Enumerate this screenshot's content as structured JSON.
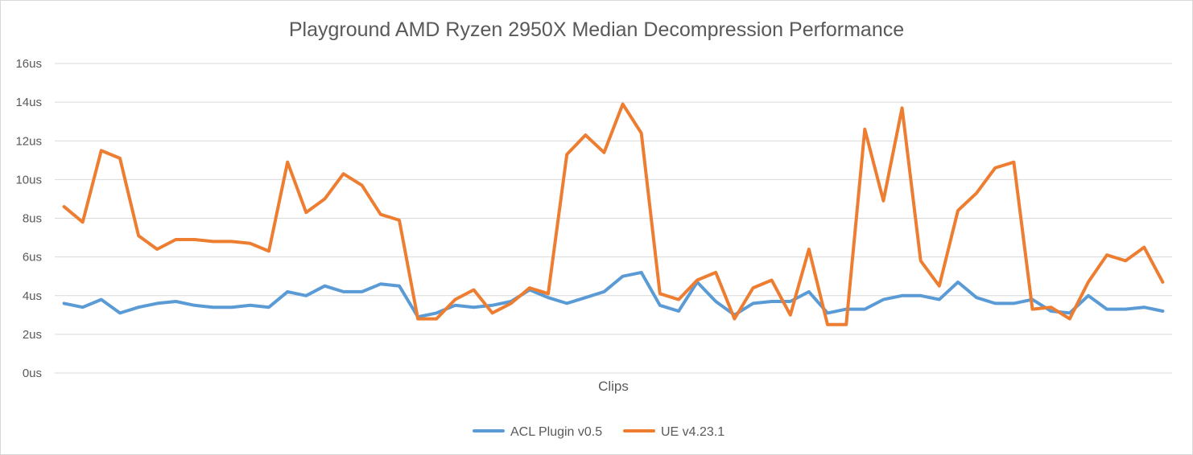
{
  "chart_data": {
    "type": "line",
    "title": "Playground AMD Ryzen 2950X Median Decompression Performance",
    "xlabel": "Clips",
    "ylabel": "",
    "ylim": [
      0,
      16
    ],
    "y_ticks": [
      "0us",
      "2us",
      "4us",
      "6us",
      "8us",
      "10us",
      "12us",
      "14us",
      "16us"
    ],
    "y_tick_values": [
      0,
      2,
      4,
      6,
      8,
      10,
      12,
      14,
      16
    ],
    "grid": true,
    "legend_position": "bottom",
    "series": [
      {
        "name": "ACL Plugin v0.5",
        "color": "#5b9bd5",
        "values": [
          3.6,
          3.4,
          3.8,
          3.1,
          3.4,
          3.6,
          3.7,
          3.5,
          3.4,
          3.4,
          3.5,
          3.4,
          4.2,
          4.0,
          4.5,
          4.2,
          4.2,
          4.6,
          4.5,
          2.9,
          3.1,
          3.5,
          3.4,
          3.5,
          3.7,
          4.3,
          3.9,
          3.6,
          3.9,
          4.2,
          5.0,
          5.2,
          3.5,
          3.2,
          4.7,
          3.7,
          3.0,
          3.6,
          3.7,
          3.7,
          4.2,
          3.1,
          3.3,
          3.3,
          3.8,
          4.0,
          4.0,
          3.8,
          4.7,
          3.9,
          3.6,
          3.6,
          3.8,
          3.2,
          3.1,
          4.0,
          3.3,
          3.3,
          3.4,
          3.2
        ]
      },
      {
        "name": "UE v4.23.1",
        "color": "#ed7d31",
        "values": [
          8.6,
          7.8,
          11.5,
          11.1,
          7.1,
          6.4,
          6.9,
          6.9,
          6.8,
          6.8,
          6.7,
          6.3,
          10.9,
          8.3,
          9.0,
          10.3,
          9.7,
          8.2,
          7.9,
          2.8,
          2.8,
          3.8,
          4.3,
          3.1,
          3.6,
          4.4,
          4.1,
          11.3,
          12.3,
          11.4,
          13.9,
          12.4,
          4.1,
          3.8,
          4.8,
          5.2,
          2.8,
          4.4,
          4.8,
          3.0,
          6.4,
          2.5,
          2.5,
          12.6,
          8.9,
          13.7,
          5.8,
          4.5,
          8.4,
          9.3,
          10.6,
          10.9,
          3.3,
          3.4,
          2.8,
          4.7,
          6.1,
          5.8,
          6.5,
          4.7
        ]
      }
    ]
  }
}
